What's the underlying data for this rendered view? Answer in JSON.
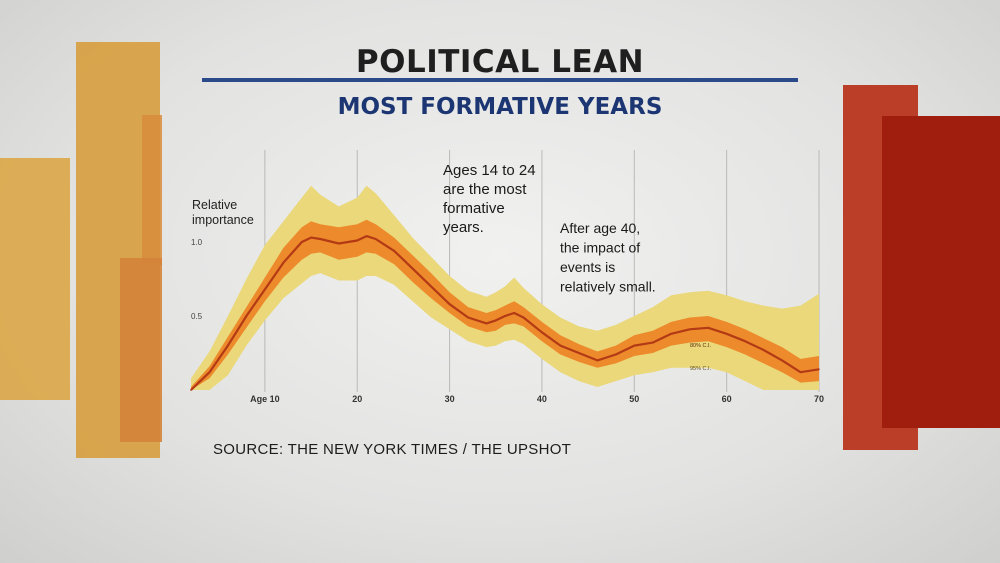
{
  "headline": "POLITICAL LEAN",
  "subheadline": "MOST FORMATIVE YEARS",
  "source": "SOURCE: THE NEW YORK TIMES / THE UPSHOT",
  "colors": {
    "headline": "#1f1f1f",
    "subheadline": "#1c3673",
    "rule": "#2a4a8a",
    "band95": "#ead87a",
    "band80": "#ec8a2c",
    "median": "#b33a15",
    "bar_gold": "#dba84a",
    "bar_amber": "#d88c3c",
    "bar_red": "#b8321a",
    "bar_deep_red": "#a01e0e"
  },
  "chart_data": {
    "type": "area",
    "title": "POLITICAL LEAN — MOST FORMATIVE YEARS",
    "ylabel": "Relative importance",
    "x_first_tick_label": "Age 10",
    "xlim": [
      2,
      70
    ],
    "ylim": [
      0,
      1.38
    ],
    "xticks": [
      10,
      20,
      30,
      40,
      50,
      60,
      70
    ],
    "yticks": [
      {
        "value": 1.0,
        "label": "1.0"
      },
      {
        "value": 0.5,
        "label": "0.5"
      }
    ],
    "gridlines": [
      10,
      20,
      30,
      40,
      50,
      60,
      70
    ],
    "x": [
      2,
      4,
      6,
      8,
      10,
      12,
      14,
      15,
      16,
      18,
      20,
      21,
      22,
      24,
      26,
      28,
      30,
      32,
      34,
      35,
      36,
      37,
      38,
      40,
      42,
      44,
      46,
      48,
      50,
      52,
      54,
      56,
      58,
      60,
      62,
      64,
      66,
      68,
      70
    ],
    "series": [
      {
        "name": "Median",
        "values": [
          0.0,
          0.12,
          0.3,
          0.5,
          0.68,
          0.86,
          1.0,
          1.03,
          1.02,
          0.99,
          1.01,
          1.04,
          1.02,
          0.94,
          0.82,
          0.7,
          0.58,
          0.49,
          0.45,
          0.47,
          0.5,
          0.52,
          0.49,
          0.39,
          0.3,
          0.25,
          0.2,
          0.24,
          0.3,
          0.32,
          0.38,
          0.41,
          0.42,
          0.38,
          0.33,
          0.27,
          0.2,
          0.12,
          0.14
        ]
      },
      {
        "name": "80% C.I.",
        "lower": [
          0.0,
          0.08,
          0.24,
          0.42,
          0.6,
          0.76,
          0.88,
          0.92,
          0.93,
          0.88,
          0.9,
          0.93,
          0.92,
          0.85,
          0.73,
          0.62,
          0.52,
          0.43,
          0.39,
          0.4,
          0.44,
          0.45,
          0.43,
          0.33,
          0.24,
          0.19,
          0.15,
          0.18,
          0.23,
          0.25,
          0.3,
          0.32,
          0.33,
          0.29,
          0.24,
          0.18,
          0.12,
          0.05,
          0.06
        ],
        "upper": [
          0.02,
          0.16,
          0.36,
          0.56,
          0.76,
          0.96,
          1.1,
          1.14,
          1.12,
          1.1,
          1.12,
          1.15,
          1.12,
          1.03,
          0.91,
          0.79,
          0.66,
          0.56,
          0.52,
          0.54,
          0.57,
          0.6,
          0.56,
          0.46,
          0.37,
          0.31,
          0.26,
          0.3,
          0.37,
          0.4,
          0.46,
          0.49,
          0.5,
          0.46,
          0.41,
          0.35,
          0.29,
          0.21,
          0.23
        ]
      },
      {
        "name": "95% C.I.",
        "lower": [
          0.0,
          0.0,
          0.1,
          0.3,
          0.47,
          0.62,
          0.72,
          0.77,
          0.79,
          0.74,
          0.74,
          0.77,
          0.77,
          0.71,
          0.6,
          0.49,
          0.41,
          0.33,
          0.29,
          0.3,
          0.33,
          0.34,
          0.31,
          0.21,
          0.12,
          0.06,
          0.02,
          0.06,
          0.1,
          0.12,
          0.15,
          0.15,
          0.15,
          0.12,
          0.06,
          0.0,
          0.0,
          0.0,
          0.0
        ],
        "upper": [
          0.08,
          0.26,
          0.5,
          0.75,
          0.98,
          1.14,
          1.3,
          1.38,
          1.32,
          1.24,
          1.3,
          1.38,
          1.33,
          1.18,
          1.03,
          0.9,
          0.77,
          0.67,
          0.63,
          0.66,
          0.7,
          0.76,
          0.69,
          0.58,
          0.49,
          0.43,
          0.4,
          0.44,
          0.5,
          0.56,
          0.64,
          0.66,
          0.67,
          0.64,
          0.6,
          0.57,
          0.55,
          0.57,
          0.65
        ]
      }
    ],
    "band_labels": {
      "ci80": "80% C.I.",
      "ci95": "95% C.I."
    },
    "annotations": [
      {
        "text": "Ages 14 to 24\nare the most\nformative\nyears."
      },
      {
        "text": "After age 40,\nthe impact of\nevents is\nrelatively small."
      }
    ]
  }
}
